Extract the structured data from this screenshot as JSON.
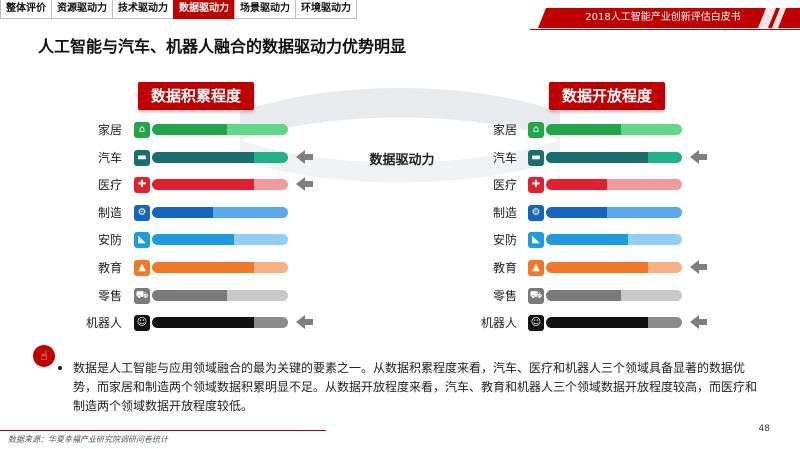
{
  "nav": {
    "tabs": [
      {
        "label": "整体评价",
        "active": false
      },
      {
        "label": "资源驱动力",
        "active": false
      },
      {
        "label": "技术驱动力",
        "active": false
      },
      {
        "label": "数据驱动力",
        "active": true
      },
      {
        "label": "场景驱动力",
        "active": false
      },
      {
        "label": "环境驱动力",
        "active": false
      }
    ]
  },
  "header": {
    "report_title": "2018人工智能产业创新评估白皮书",
    "page_title": "人工智能与汽车、机器人融合的数据驱动力优势明显"
  },
  "diagram": {
    "left_panel_title": "数据积累程度",
    "right_panel_title": "数据开放程度",
    "center_label": "数据驱动力",
    "rows": [
      {
        "label": "家居",
        "icon": "home-icon",
        "glyph": "⌂",
        "color": "#1fa647",
        "light": "#5fd88a",
        "left_fill": 0.55,
        "right_fill": 0.55,
        "left_arrow": false,
        "right_arrow": false
      },
      {
        "label": "汽车",
        "icon": "car-icon",
        "glyph": "▬",
        "color": "#1a6e6e",
        "light": "#21b28a",
        "left_fill": 0.75,
        "right_fill": 0.75,
        "left_arrow": true,
        "right_arrow": true
      },
      {
        "label": "医疗",
        "icon": "medical-cross-icon",
        "glyph": "✚",
        "color": "#e0202e",
        "light": "#f39a9e",
        "left_fill": 0.75,
        "right_fill": 0.45,
        "left_arrow": true,
        "right_arrow": false
      },
      {
        "label": "制造",
        "icon": "factory-icon",
        "glyph": "⚙",
        "color": "#1565c0",
        "light": "#59a9ec",
        "left_fill": 0.45,
        "right_fill": 0.45,
        "left_arrow": false,
        "right_arrow": false
      },
      {
        "label": "安防",
        "icon": "security-camera-icon",
        "glyph": "◣",
        "color": "#1e9be0",
        "light": "#8fd0f4",
        "left_fill": 0.6,
        "right_fill": 0.6,
        "left_arrow": false,
        "right_arrow": false
      },
      {
        "label": "教育",
        "icon": "graduation-cap-icon",
        "glyph": "▲",
        "color": "#f07826",
        "light": "#f5b17f",
        "left_fill": 0.75,
        "right_fill": 0.75,
        "left_arrow": false,
        "right_arrow": true
      },
      {
        "label": "零售",
        "icon": "shopping-cart-icon",
        "glyph": "⛟",
        "color": "#7a7a7a",
        "light": "#c8c8c8",
        "left_fill": 0.55,
        "right_fill": 0.55,
        "left_arrow": false,
        "right_arrow": false
      },
      {
        "label": "机器人",
        "icon": "robot-icon",
        "glyph": "☺",
        "color": "#111111",
        "light": "#8a8a8a",
        "left_fill": 0.75,
        "right_fill": 0.75,
        "left_arrow": true,
        "right_arrow": true
      }
    ]
  },
  "summary": {
    "icon": "hand-pointer-icon",
    "text": "数据是人工智能与应用领域融合的最为关键的要素之一。从数据积累程度来看，汽车、医疗和机器人三个领域具备显著的数据优势，而家居和制造两个领域数据积累明显不足。从数据开放程度来看，汽车、教育和机器人三个领域数据开放程度较高，而医疗和制造两个领域数据开放程度较低。"
  },
  "footer": {
    "source": "数据来源：华夏幸福产业研究院调研问卷统计",
    "page_number": "48"
  },
  "colors": {
    "accent": "#c00000",
    "arrow": "#7f7f7f"
  }
}
